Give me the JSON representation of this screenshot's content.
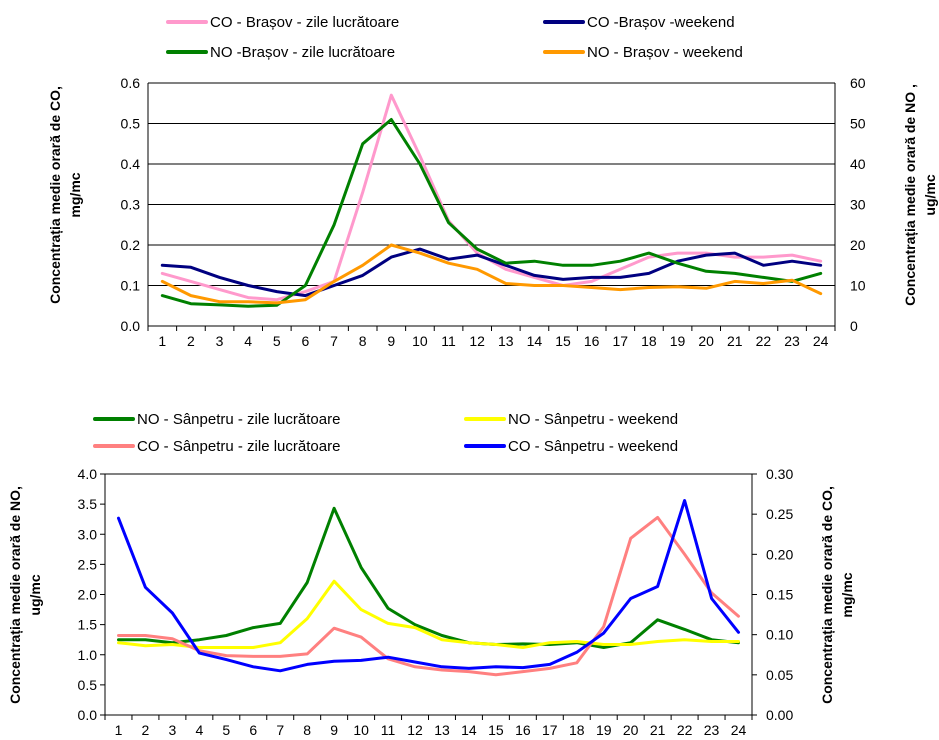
{
  "chart_data": [
    {
      "type": "line",
      "categories": [
        "1",
        "2",
        "3",
        "4",
        "5",
        "6",
        "7",
        "8",
        "9",
        "10",
        "11",
        "12",
        "13",
        "14",
        "15",
        "16",
        "17",
        "18",
        "19",
        "20",
        "21",
        "22",
        "23",
        "24"
      ],
      "left_axis": {
        "label_line1": "Concentrația medie orară de CO,",
        "label_line2": "mg/mc",
        "ylim": [
          0,
          0.6
        ],
        "ticks": [
          "0.0",
          "0.1",
          "0.2",
          "0.3",
          "0.4",
          "0.5",
          "0.6"
        ]
      },
      "right_axis": {
        "label_line1": "Concentrația medie orară de NO ,",
        "label_line2": "ug/mc",
        "ylim": [
          0,
          60
        ],
        "ticks": [
          "0",
          "10",
          "20",
          "30",
          "40",
          "50",
          "60"
        ]
      },
      "grid": "horizontal",
      "legend_position": "top",
      "series": [
        {
          "name": "CO - Brașov - zile lucrătoare",
          "axis": "left",
          "color": "#ff99cc",
          "values": [
            0.13,
            0.11,
            0.09,
            0.07,
            0.065,
            0.085,
            0.11,
            0.33,
            0.57,
            0.42,
            0.26,
            0.18,
            0.14,
            0.12,
            0.1,
            0.11,
            0.14,
            0.17,
            0.18,
            0.18,
            0.17,
            0.17,
            0.175,
            0.16
          ]
        },
        {
          "name": "CO -Brașov -weekend",
          "axis": "left",
          "color": "#000080",
          "values": [
            0.15,
            0.145,
            0.12,
            0.1,
            0.085,
            0.075,
            0.1,
            0.125,
            0.17,
            0.19,
            0.165,
            0.175,
            0.15,
            0.125,
            0.115,
            0.12,
            0.12,
            0.13,
            0.16,
            0.175,
            0.18,
            0.15,
            0.16,
            0.15
          ]
        },
        {
          "name": "NO -Brașov - zile lucrătoare",
          "axis": "right",
          "color": "#008000",
          "values": [
            7.5,
            5.5,
            5.2,
            4.9,
            5.1,
            10,
            25,
            45,
            51,
            40,
            25.5,
            19,
            15.5,
            16,
            15,
            15,
            16,
            18,
            15.5,
            13.5,
            13,
            12,
            11,
            13
          ]
        },
        {
          "name": "NO - Brașov - weekend",
          "axis": "right",
          "color": "#ff9900",
          "values": [
            11,
            7.5,
            6,
            6,
            5.7,
            6.5,
            11,
            15,
            20,
            18,
            15.5,
            14,
            10.5,
            10,
            10,
            9.5,
            9,
            9.5,
            9.7,
            9.3,
            11,
            10.5,
            11.3,
            8
          ]
        }
      ]
    },
    {
      "type": "line",
      "categories": [
        "1",
        "2",
        "3",
        "4",
        "5",
        "6",
        "7",
        "8",
        "9",
        "10",
        "11",
        "12",
        "13",
        "14",
        "15",
        "16",
        "17",
        "18",
        "19",
        "20",
        "21",
        "22",
        "23",
        "24"
      ],
      "left_axis": {
        "label_line1": "Concentrația medie orară de NO,",
        "label_line2": "ug/mc",
        "ylim": [
          0,
          4
        ],
        "ticks": [
          "0.0",
          "0.5",
          "1.0",
          "1.5",
          "2.0",
          "2.5",
          "3.0",
          "3.5",
          "4.0"
        ]
      },
      "right_axis": {
        "label_line1": "Concentrația medie orară de CO,",
        "label_line2": "mg/mc",
        "ylim": [
          0,
          0.3
        ],
        "ticks": [
          "0.00",
          "0.05",
          "0.10",
          "0.15",
          "0.20",
          "0.25",
          "0.30"
        ]
      },
      "grid": "none",
      "legend_position": "top",
      "series": [
        {
          "name": "NO - Sânpetru - zile lucrătoare",
          "axis": "left",
          "color": "#008000",
          "values": [
            1.25,
            1.25,
            1.2,
            1.25,
            1.32,
            1.45,
            1.52,
            2.2,
            3.43,
            2.45,
            1.77,
            1.5,
            1.32,
            1.2,
            1.17,
            1.18,
            1.17,
            1.2,
            1.12,
            1.2,
            1.58,
            1.42,
            1.25,
            1.2
          ]
        },
        {
          "name": "NO - Sânpetru - weekend",
          "axis": "left",
          "color": "#ffff00",
          "values": [
            1.2,
            1.15,
            1.17,
            1.12,
            1.12,
            1.12,
            1.2,
            1.6,
            2.22,
            1.75,
            1.52,
            1.45,
            1.25,
            1.2,
            1.17,
            1.12,
            1.2,
            1.22,
            1.17,
            1.17,
            1.22,
            1.25,
            1.22,
            1.22
          ]
        },
        {
          "name": "CO - Sânpetru - zile lucrătoare",
          "axis": "right",
          "color": "#ff8080",
          "values": [
            0.099,
            0.099,
            0.095,
            0.08,
            0.074,
            0.073,
            0.073,
            0.076,
            0.108,
            0.097,
            0.07,
            0.06,
            0.056,
            0.054,
            0.05,
            0.054,
            0.058,
            0.065,
            0.11,
            0.22,
            0.246,
            0.2,
            0.152,
            0.123
          ]
        },
        {
          "name": "CO - Sânpetru - weekend",
          "axis": "right",
          "color": "#0000ff",
          "values": [
            0.245,
            0.159,
            0.127,
            0.077,
            0.069,
            0.06,
            0.055,
            0.063,
            0.067,
            0.068,
            0.072,
            0.066,
            0.06,
            0.058,
            0.06,
            0.059,
            0.063,
            0.078,
            0.102,
            0.145,
            0.16,
            0.267,
            0.145,
            0.103
          ]
        }
      ]
    }
  ]
}
